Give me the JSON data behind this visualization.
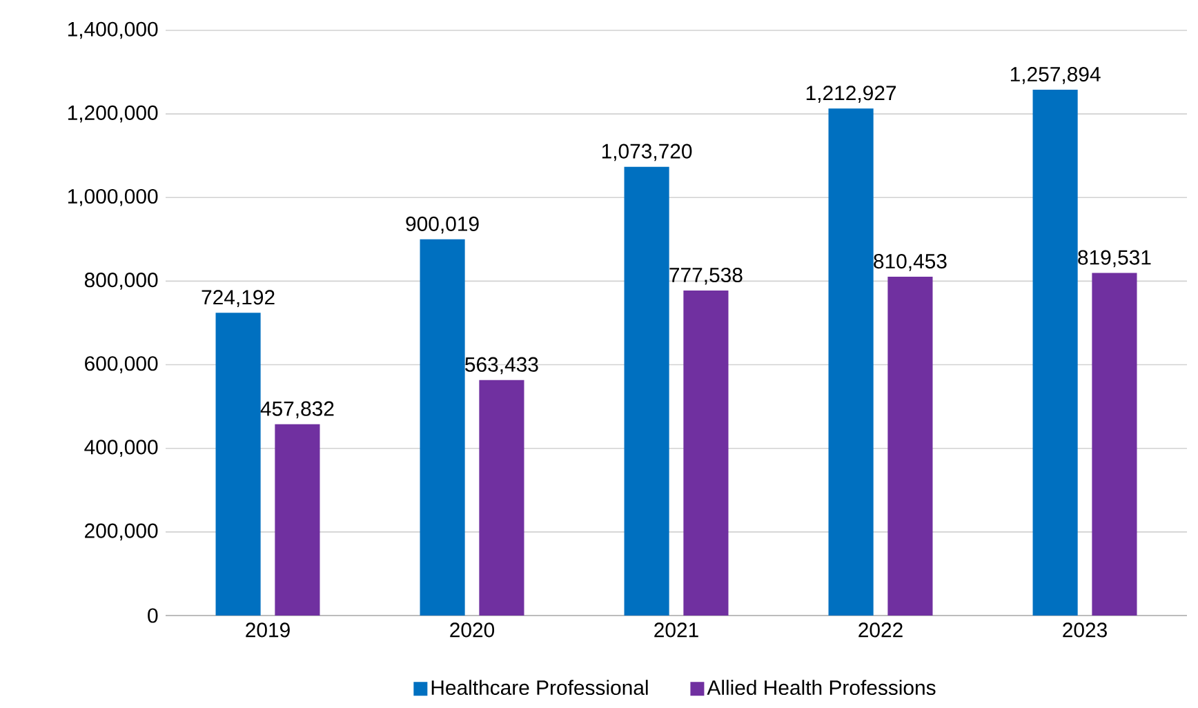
{
  "chart_data": {
    "type": "bar",
    "categories": [
      "2019",
      "2020",
      "2021",
      "2022",
      "2023"
    ],
    "series": [
      {
        "name": "Healthcare Professional",
        "color": "#0070c0",
        "values": [
          724192,
          900019,
          1073720,
          1212927,
          1257894
        ],
        "value_labels": [
          "724,192",
          "900,019",
          "1,073,720",
          "1,212,927",
          "1,257,894"
        ]
      },
      {
        "name": "Allied Health Professions",
        "color": "#7030a0",
        "values": [
          457832,
          563433,
          777538,
          810453,
          819531
        ],
        "value_labels": [
          "457,832",
          "563,433",
          "777,538",
          "810,453",
          "819,531"
        ]
      }
    ],
    "ylim": [
      0,
      1400000
    ],
    "yticks": [
      0,
      {
        "value": 200000,
        "label": "200,000"
      },
      {
        "value": 400000,
        "label": "400,000"
      },
      {
        "value": 600000,
        "label": "600,000"
      },
      {
        "value": 800000,
        "label": "800,000"
      },
      {
        "value": 1000000,
        "label": "1,000,000"
      },
      {
        "value": 1200000,
        "label": "1,200,000"
      },
      {
        "value": 1400000,
        "label": "1,400,000"
      }
    ],
    "grid": "y",
    "legend": "bottom"
  }
}
